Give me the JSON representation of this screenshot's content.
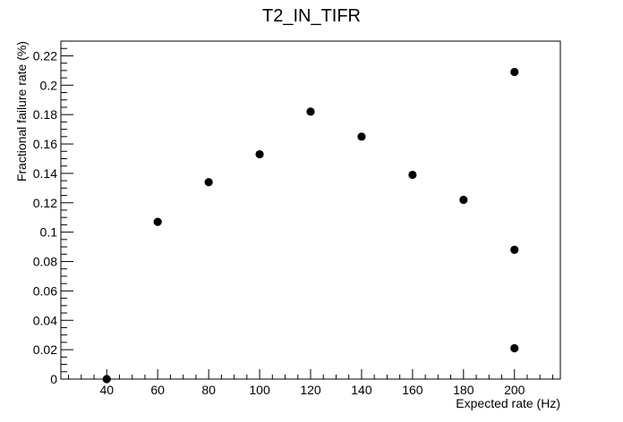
{
  "chart_data": {
    "type": "scatter",
    "title": "T2_IN_TIFR",
    "xlabel": "Expected rate (Hz)",
    "ylabel": "Fractional failure rate (%)",
    "xlim": [
      22,
      218
    ],
    "ylim": [
      0,
      0.23
    ],
    "xticks": [
      40,
      60,
      80,
      100,
      120,
      140,
      160,
      180,
      200
    ],
    "yticks": [
      0,
      0.02,
      0.04,
      0.06,
      0.08,
      0.1,
      0.12,
      0.14,
      0.16,
      0.18,
      0.2,
      0.22
    ],
    "xtick_labels": [
      "40",
      "60",
      "80",
      "100",
      "120",
      "140",
      "160",
      "180",
      "200"
    ],
    "ytick_labels": [
      "0",
      "0.02",
      "0.04",
      "0.06",
      "0.08",
      "0.1",
      "0.12",
      "0.14",
      "0.16",
      "0.18",
      "0.2",
      "0.22"
    ],
    "grid": false,
    "marker_color": "#000000",
    "series": [
      {
        "points": [
          {
            "x": 40,
            "y": 0.0
          },
          {
            "x": 60,
            "y": 0.107
          },
          {
            "x": 80,
            "y": 0.134
          },
          {
            "x": 100,
            "y": 0.153
          },
          {
            "x": 120,
            "y": 0.182
          },
          {
            "x": 140,
            "y": 0.165
          },
          {
            "x": 160,
            "y": 0.139
          },
          {
            "x": 180,
            "y": 0.122
          },
          {
            "x": 200,
            "y": 0.209
          },
          {
            "x": 200,
            "y": 0.088
          },
          {
            "x": 200,
            "y": 0.021
          }
        ]
      }
    ]
  }
}
